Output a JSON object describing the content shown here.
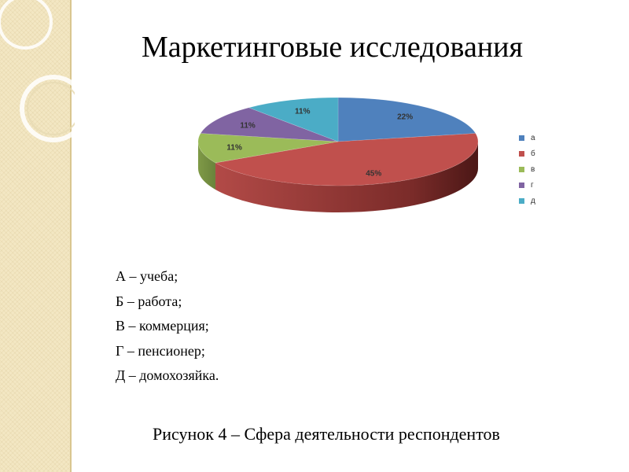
{
  "slide": {
    "title": "Маркетинговые исследования",
    "decode_lines": [
      "А – учеба;",
      "Б – работа;",
      "В – коммерция;",
      "Г – пенсионер;",
      "Д – домохозяйка."
    ],
    "caption": "Рисунок 4 – Сфера деятельности респондентов"
  },
  "theme": {
    "strip_color": "#f3e7c3",
    "accent_line": "#d9c68f"
  },
  "chart_data": {
    "type": "pie",
    "style": "3d",
    "title": "",
    "legend_position": "right",
    "slices": [
      {
        "name": "а",
        "value": 22,
        "label": "22%",
        "color": "#4f81bd"
      },
      {
        "name": "б",
        "value": 45,
        "label": "45%",
        "color": "#c0504d"
      },
      {
        "name": "в",
        "value": 11,
        "label": "11%",
        "color": "#9bbb59"
      },
      {
        "name": "г",
        "value": 11,
        "label": "11%",
        "color": "#8064a2"
      },
      {
        "name": "д",
        "value": 11,
        "label": "11%",
        "color": "#4bacc6"
      }
    ]
  }
}
